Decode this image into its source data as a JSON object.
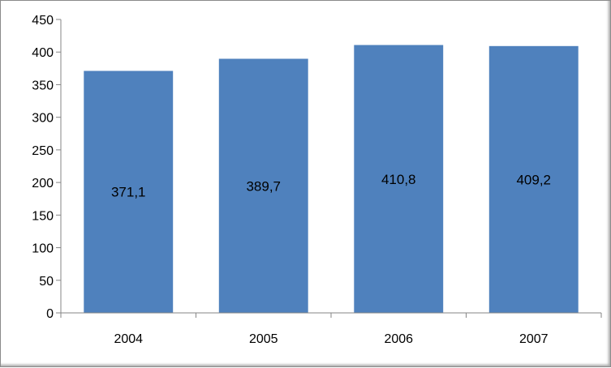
{
  "chart_data": {
    "type": "bar",
    "categories": [
      "2004",
      "2005",
      "2006",
      "2007"
    ],
    "values": [
      371.1,
      389.7,
      410.8,
      409.2
    ],
    "data_labels": [
      "371,1",
      "389,7",
      "410,8",
      "409,2"
    ],
    "yticks": [
      "0",
      "50",
      "100",
      "150",
      "200",
      "250",
      "300",
      "350",
      "400",
      "450"
    ],
    "ylim": [
      0,
      450
    ],
    "title": "",
    "xlabel": "",
    "ylabel": "",
    "grid": false,
    "legend": "none",
    "bar_color": "#4f81bd"
  }
}
